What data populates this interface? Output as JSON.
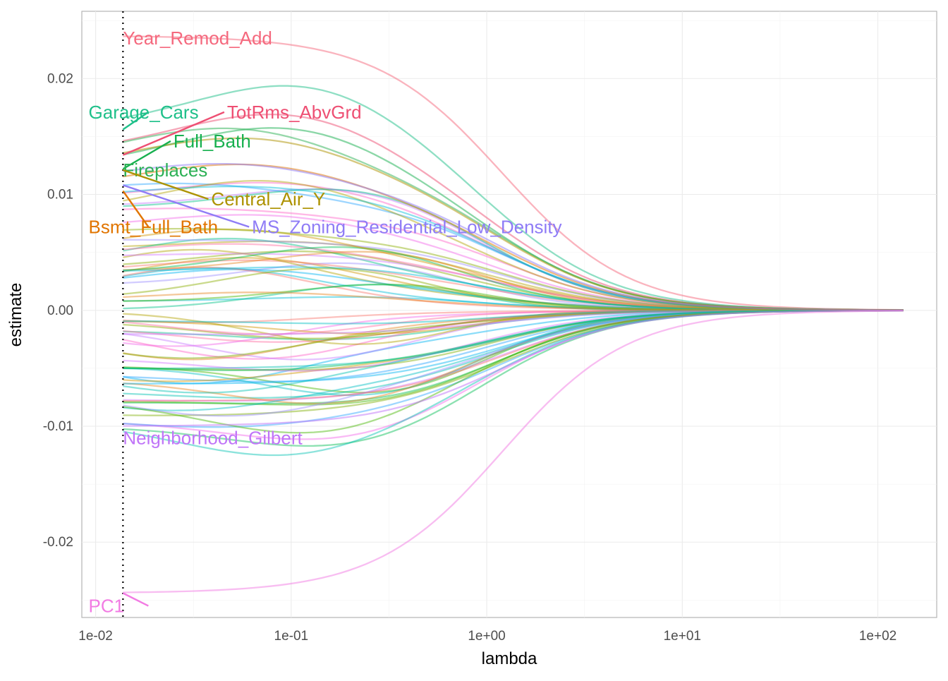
{
  "chart_data": {
    "type": "line",
    "xlabel": "lambda",
    "ylabel": "estimate",
    "xscale": "log10",
    "xlim": [
      0.0085,
      200
    ],
    "ylim": [
      -0.0265,
      0.0258
    ],
    "x_ticks": [
      {
        "value": 0.01,
        "label": "1e-02"
      },
      {
        "value": 0.1,
        "label": "1e-01"
      },
      {
        "value": 1,
        "label": "1e+00"
      },
      {
        "value": 10,
        "label": "1e+01"
      },
      {
        "value": 100,
        "label": "1e+02"
      }
    ],
    "y_ticks": [
      {
        "value": 0.02,
        "label": "0.02"
      },
      {
        "value": 0.01,
        "label": "0.01"
      },
      {
        "value": 0.0,
        "label": "0.00"
      },
      {
        "value": -0.01,
        "label": "-0.01"
      },
      {
        "value": -0.02,
        "label": "-0.02"
      }
    ],
    "grid": true,
    "lambda_range": [
      0.0138,
      135
    ],
    "vline": {
      "x": 0.0138,
      "style": "dotted"
    },
    "labeled_series": [
      {
        "name": "Year_Remod_Add",
        "color": "#F5697E",
        "start": 0.0237,
        "peak_log": -2.3,
        "bump": 0.0,
        "label_x": 0.0138,
        "label_y": 0.0235
      },
      {
        "name": "TotRms_AbvGrd",
        "color": "#EE4F73",
        "start": 0.0134,
        "peak_log": -1.0,
        "bump": 0.004,
        "label_x": 0.047,
        "label_y": 0.0171
      },
      {
        "name": "Garage_Cars",
        "color": "#1FC08A",
        "start": 0.0156,
        "peak_log": -0.9,
        "bump": 0.0045,
        "label_x": 0.0092,
        "label_y": 0.0171
      },
      {
        "name": "Full_Bath",
        "color": "#17B04F",
        "start": 0.0122,
        "peak_log": -1.0,
        "bump": 0.004,
        "label_x": 0.025,
        "label_y": 0.0146
      },
      {
        "name": "Fireplaces",
        "color": "#2DB156",
        "start": 0.0124,
        "peak_log": -1.3,
        "bump": 0.0035,
        "label_x": 0.0138,
        "label_y": 0.0121
      },
      {
        "name": "Central_Air_Y",
        "color": "#AD9200",
        "start": 0.0121,
        "peak_log": -1.2,
        "bump": 0.003,
        "label_x": 0.039,
        "label_y": 0.0096
      },
      {
        "name": "Bsmt_Full_Bath",
        "color": "#E17500",
        "start": 0.0103,
        "peak_log": -1.2,
        "bump": 0.0025,
        "label_x": 0.0092,
        "label_y": 0.0072
      },
      {
        "name": "MS_Zoning_Residential_Low_Density",
        "color": "#8F7CF6",
        "start": 0.0108,
        "peak_log": -1.3,
        "bump": 0.002,
        "label_x": 0.063,
        "label_y": 0.0072
      },
      {
        "name": "Neighborhood_Gilbert",
        "color": "#C075F8",
        "start": -0.01,
        "peak_log": -2.3,
        "bump": 0.0,
        "label_x": 0.0138,
        "label_y": -0.011
      },
      {
        "name": "PC1",
        "color": "#F27BE3",
        "start": -0.0244,
        "peak_log": -2.3,
        "bump": 0.0,
        "label_x": 0.0092,
        "label_y": -0.0255
      }
    ]
  }
}
